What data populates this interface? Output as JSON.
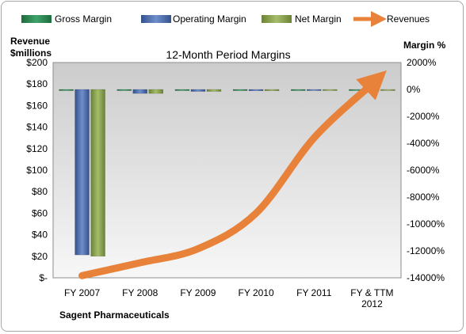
{
  "chart_data": {
    "type": "bar",
    "title": "12-Month Period Margins",
    "company": "Sagent Pharmaceuticals",
    "left_axis_label": [
      "Revenue",
      "$millions"
    ],
    "right_axis_label": "Margin %",
    "categories": [
      [
        "FY 2007"
      ],
      [
        "FY 2008"
      ],
      [
        "FY 2009"
      ],
      [
        "FY 2010"
      ],
      [
        "FY 2011"
      ],
      [
        "FY & TTM",
        "2012"
      ]
    ],
    "left_ticks": [
      "$200",
      "$180",
      "$160",
      "$140",
      "$120",
      "$100",
      "$80",
      "$60",
      "$40",
      "$20",
      "$-"
    ],
    "right_ticks": [
      "2000%",
      "0%",
      "-2000%",
      "-4000%",
      "-6000%",
      "-8000%",
      "-10000%",
      "-12000%",
      "-14000%"
    ],
    "ylim_left": [
      0,
      200
    ],
    "ylim_right": [
      -14000,
      2000
    ],
    "grid": false,
    "legend_position": "top",
    "series": [
      {
        "name": "Gross Margin",
        "axis": "right",
        "kind": "bar",
        "color": "#2e8b57",
        "values": [
          -5,
          -10,
          -8,
          -5,
          -4,
          -3
        ]
      },
      {
        "name": "Operating Margin",
        "axis": "right",
        "kind": "bar",
        "color": "#4f6fb0",
        "values": [
          -12300,
          -300,
          -150,
          -100,
          -70,
          -50
        ]
      },
      {
        "name": "Net Margin",
        "axis": "right",
        "kind": "bar",
        "color": "#8da555",
        "values": [
          -12400,
          -300,
          -150,
          -100,
          -70,
          -50
        ]
      },
      {
        "name": "Revenues",
        "axis": "left",
        "kind": "line",
        "color": "#e8823a",
        "values": [
          2,
          14,
          27,
          60,
          130,
          180
        ]
      }
    ]
  }
}
